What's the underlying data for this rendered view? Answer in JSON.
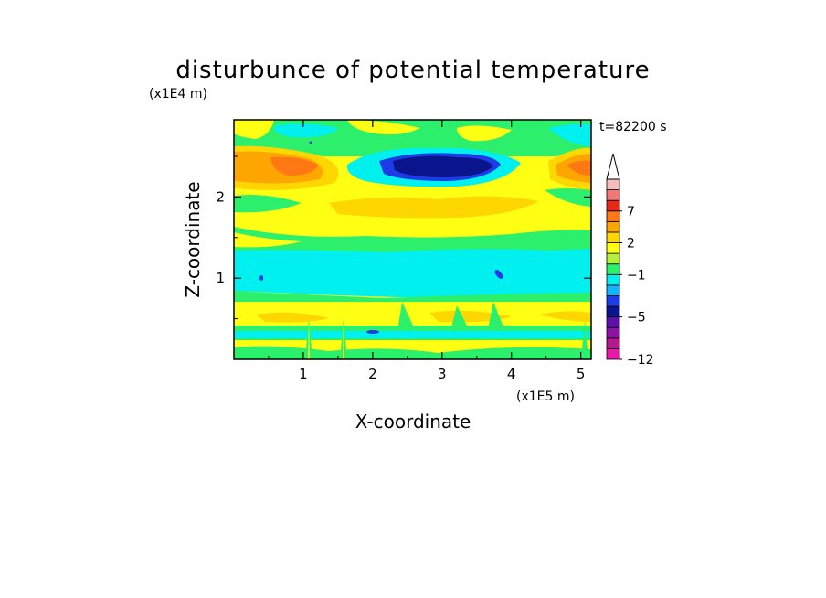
{
  "chart_data": {
    "type": "heatmap",
    "title": "disturbunce of potential temperature",
    "time_label": "t=82200 s",
    "xlabel": "X-coordinate",
    "ylabel": "Z-coordinate",
    "x_unit": "(x1E5 m)",
    "y_unit": "(x1E4 m)",
    "xlim": [
      0,
      5.15
    ],
    "ylim": [
      0,
      2.95
    ],
    "xticks": [
      1,
      2,
      3,
      4,
      5
    ],
    "yticks": [
      1,
      2
    ],
    "colorbar": {
      "colors": [
        "#e619a8",
        "#b3188f",
        "#8c13a6",
        "#5c12a8",
        "#0a148c",
        "#1e3ce6",
        "#14b4ff",
        "#00f0f0",
        "#2cf06c",
        "#b4f03c",
        "#ffff14",
        "#ffd700",
        "#ffa500",
        "#ff7814",
        "#e62814",
        "#f07878",
        "#f5bebe"
      ],
      "tick_labels": [
        "−12",
        "−5",
        "−1",
        "2",
        "7"
      ],
      "extend_top_color": "#ffffff"
    }
  }
}
